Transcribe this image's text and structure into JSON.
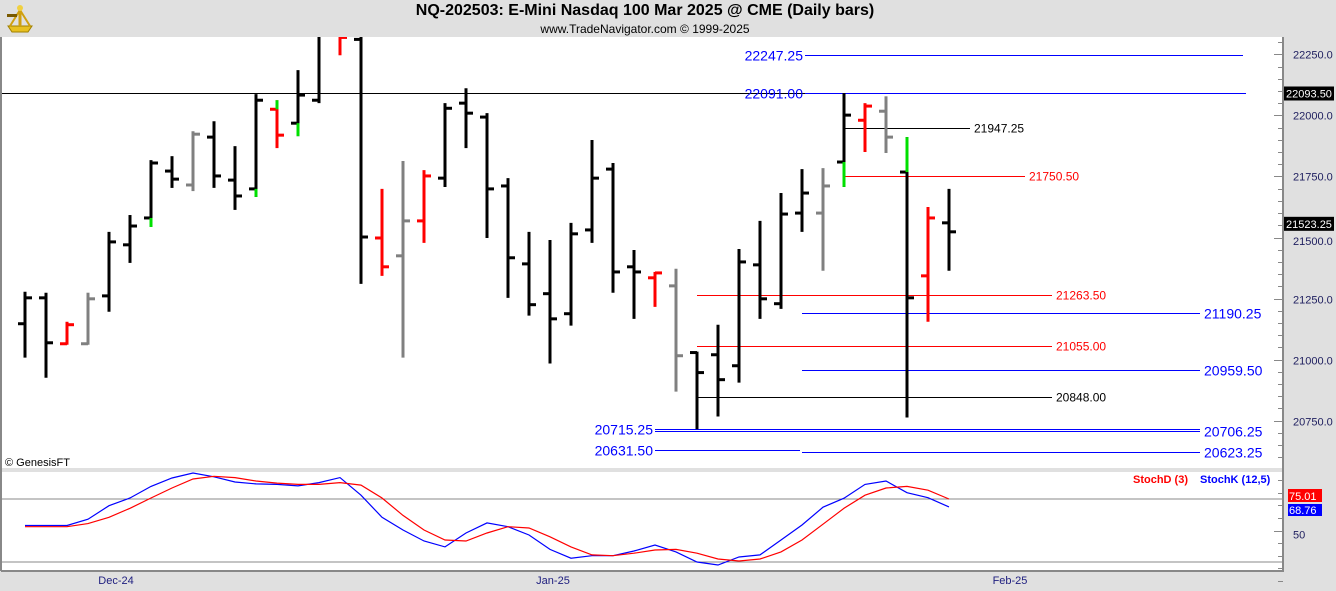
{
  "header": {
    "title": "NQ-202503:  E-Mini Nasdaq 100 Mar 2025 @ CME  (Daily bars)",
    "subtitle": "www.TradeNavigator.com © 1999-2025",
    "logo": "sextant-logo"
  },
  "copyright": "© GenesisFT",
  "colors": {
    "up": "#000000",
    "down": "#ff0000",
    "neutral": "#808080",
    "mark": "#00e000",
    "blue": "#0000ff",
    "stochD": "#ff0000",
    "stochK": "#0000ff"
  },
  "chart_data": [
    {
      "type": "ohlc",
      "symbol": "NQ-202503",
      "y_ticks": [
        "22250.0",
        "22000.0",
        "21750.0",
        "21500.0",
        "21250.0",
        "21000.0",
        "20750.0"
      ],
      "y_tick_values": [
        22250,
        22000,
        21750,
        21500,
        21250,
        21000,
        20750
      ],
      "ylim": [
        20560,
        22320
      ],
      "x_tick_labels": [
        "Dec-24",
        "Jan-25",
        "Feb-25"
      ],
      "last_price_label": "21523.25",
      "last_price": 21523.25,
      "bars": [
        {
          "o": 21147,
          "h": 21278,
          "l": 21008,
          "c": 21253,
          "col": "up"
        },
        {
          "o": 21253,
          "h": 21274,
          "l": 20926,
          "c": 21069,
          "col": "up"
        },
        {
          "o": 21065,
          "h": 21155,
          "l": 21061,
          "c": 21143,
          "col": "down"
        },
        {
          "o": 21065,
          "h": 21274,
          "l": 21061,
          "c": 21249,
          "col": "neutral"
        },
        {
          "o": 21261,
          "h": 21523,
          "l": 21196,
          "c": 21482,
          "col": "up"
        },
        {
          "o": 21470,
          "h": 21592,
          "l": 21396,
          "c": 21547,
          "col": "up"
        },
        {
          "o": 21580,
          "h": 21817,
          "l": 21543,
          "c": 21805,
          "col": "up",
          "mark": "low"
        },
        {
          "o": 21772,
          "h": 21833,
          "l": 21703,
          "c": 21739,
          "col": "up"
        },
        {
          "o": 21715,
          "h": 21935,
          "l": 21690,
          "c": 21923,
          "col": "neutral"
        },
        {
          "o": 21911,
          "h": 21976,
          "l": 21703,
          "c": 21752,
          "col": "up"
        },
        {
          "o": 21735,
          "h": 21874,
          "l": 21613,
          "c": 21670,
          "col": "up"
        },
        {
          "o": 21699,
          "h": 22087,
          "l": 21666,
          "c": 22062,
          "col": "up",
          "mark": "low"
        },
        {
          "o": 22025,
          "h": 22062,
          "l": 21866,
          "c": 21919,
          "col": "down",
          "mark": "high"
        },
        {
          "o": 21968,
          "h": 22185,
          "l": 21915,
          "c": 22083,
          "col": "up",
          "mark": "low"
        },
        {
          "o": 22062,
          "h": 22400,
          "l": 22050,
          "c": 22328,
          "col": "up"
        },
        {
          "o": 22345,
          "h": 22350,
          "l": 22246,
          "c": 22319,
          "col": "down"
        },
        {
          "o": 22311,
          "h": 22360,
          "l": 21310,
          "c": 21502,
          "col": "up"
        },
        {
          "o": 21498,
          "h": 21699,
          "l": 21343,
          "c": 21380,
          "col": "down"
        },
        {
          "o": 21425,
          "h": 21813,
          "l": 21008,
          "c": 21568,
          "col": "neutral"
        },
        {
          "o": 21568,
          "h": 21776,
          "l": 21478,
          "c": 21752,
          "col": "down"
        },
        {
          "o": 21743,
          "h": 22050,
          "l": 21707,
          "c": 22029,
          "col": "up"
        },
        {
          "o": 22050,
          "h": 22111,
          "l": 21866,
          "c": 22009,
          "col": "up"
        },
        {
          "o": 21993,
          "h": 22009,
          "l": 21498,
          "c": 21699,
          "col": "up"
        },
        {
          "o": 21711,
          "h": 21743,
          "l": 21253,
          "c": 21417,
          "col": "up"
        },
        {
          "o": 21392,
          "h": 21523,
          "l": 21180,
          "c": 21225,
          "col": "up"
        },
        {
          "o": 21270,
          "h": 21490,
          "l": 20984,
          "c": 21167,
          "col": "up"
        },
        {
          "o": 21188,
          "h": 21560,
          "l": 21139,
          "c": 21515,
          "col": "up"
        },
        {
          "o": 21531,
          "h": 21899,
          "l": 21478,
          "c": 21743,
          "col": "up"
        },
        {
          "o": 21780,
          "h": 21805,
          "l": 21274,
          "c": 21359,
          "col": "up"
        },
        {
          "o": 21380,
          "h": 21449,
          "l": 21167,
          "c": 21359,
          "col": "up"
        },
        {
          "o": 21335,
          "h": 21359,
          "l": 21216,
          "c": 21355,
          "col": "down"
        },
        {
          "o": 21302,
          "h": 21372,
          "l": 20869,
          "c": 21016,
          "col": "neutral"
        },
        {
          "o": 21029,
          "h": 21033,
          "l": 20715.25,
          "c": 20947,
          "col": "up"
        },
        {
          "o": 21020,
          "h": 21143,
          "l": 20767,
          "c": 20918,
          "col": "up"
        },
        {
          "o": 20975,
          "h": 21453,
          "l": 20906,
          "c": 21400,
          "col": "up"
        },
        {
          "o": 21388,
          "h": 21568,
          "l": 21167,
          "c": 21249,
          "col": "up"
        },
        {
          "o": 21229,
          "h": 21682,
          "l": 21208,
          "c": 21596,
          "col": "up"
        },
        {
          "o": 21600,
          "h": 21780,
          "l": 21523,
          "c": 21682,
          "col": "up"
        },
        {
          "o": 21600,
          "h": 21784,
          "l": 21364,
          "c": 21711,
          "col": "neutral"
        },
        {
          "o": 21809,
          "h": 22091,
          "l": 21707,
          "c": 22001,
          "col": "up",
          "mark": "low"
        },
        {
          "o": 21980,
          "h": 22050,
          "l": 21850,
          "c": 22038,
          "col": "down"
        },
        {
          "o": 22017,
          "h": 22078,
          "l": 21846,
          "c": 21911,
          "col": "neutral"
        },
        {
          "o": 21768,
          "h": 21911,
          "l": 20763,
          "c": 21253,
          "col": "up",
          "mark": "high"
        },
        {
          "o": 21343,
          "h": 21625,
          "l": 21155,
          "c": 21580,
          "col": "down"
        },
        {
          "o": 21560,
          "h": 21699,
          "l": 21364,
          "c": 21523.25,
          "col": "up"
        }
      ],
      "levels": [
        {
          "value": 22247.25,
          "label": "22247.25",
          "color": "#0000ff"
        },
        {
          "value": 22093.5,
          "label": "22093.50",
          "color": "#000000",
          "axis_marker": true
        },
        {
          "value": 22091.0,
          "label": "22091.00",
          "color": "#0000ff"
        },
        {
          "value": 21947.25,
          "label": "21947.25",
          "color": "#000000"
        },
        {
          "value": 21750.5,
          "label": "21750.50",
          "color": "#ff0000"
        },
        {
          "value": 21263.5,
          "label": "21263.50",
          "color": "#ff0000"
        },
        {
          "value": 21190.25,
          "label": "21190.25",
          "color": "#0000ff"
        },
        {
          "value": 21055.0,
          "label": "21055.00",
          "color": "#ff0000"
        },
        {
          "value": 20959.5,
          "label": "20959.50",
          "color": "#0000ff"
        },
        {
          "value": 20848.0,
          "label": "20848.00",
          "color": "#000000"
        },
        {
          "value": 20715.25,
          "label": "20715.25",
          "color": "#0000ff"
        },
        {
          "value": 20706.25,
          "label": "20706.25",
          "color": "#0000ff"
        },
        {
          "value": 20631.5,
          "label": "20631.50",
          "color": "#0000ff"
        },
        {
          "value": 20623.25,
          "label": "20623.25",
          "color": "#0000ff"
        }
      ]
    },
    {
      "type": "line",
      "ylim": [
        0,
        100
      ],
      "y_ticks": [
        "50"
      ],
      "reference_lines": [
        75,
        25
      ],
      "series": [
        {
          "name": "StochD (3)",
          "color": "#ff0000",
          "last_label": "75.01",
          "values": [
            53,
            53,
            53,
            55.5,
            60.5,
            67.6,
            75.8,
            83.7,
            90.9,
            93,
            92,
            89.3,
            87.6,
            86.6,
            86.6,
            88,
            86,
            75.8,
            62,
            50.4,
            42.5,
            41.7,
            48,
            53,
            52,
            45,
            37,
            30.6,
            30,
            32,
            34.5,
            35,
            32,
            27.4,
            25.8,
            27.4,
            33,
            42.5,
            55,
            67.6,
            78,
            83.7,
            85,
            82,
            75.01
          ]
        },
        {
          "name": "StochK (12,5)",
          "color": "#0000ff",
          "last_label": "68.76",
          "values": [
            54,
            54,
            54,
            59,
            69.7,
            75.8,
            85,
            91.7,
            95.6,
            92.6,
            88.5,
            87,
            86.6,
            85.4,
            88,
            92,
            78,
            60.5,
            50.4,
            41.7,
            37,
            48,
            56,
            53,
            46.4,
            35,
            28,
            30,
            30,
            33.7,
            38.5,
            33,
            25,
            22.6,
            29,
            30.6,
            42.5,
            54.4,
            68.5,
            75.6,
            86.6,
            89.3,
            80,
            76,
            68.76
          ]
        }
      ]
    }
  ]
}
